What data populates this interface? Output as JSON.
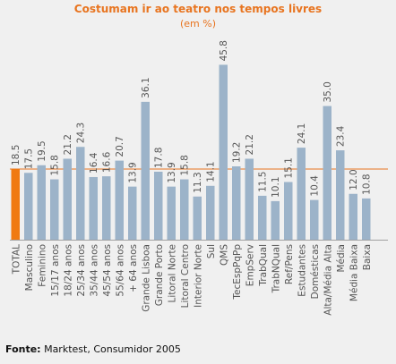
{
  "chart_data": {
    "type": "bar",
    "title": "Costumam ir ao teatro nos tempos livres",
    "subtitle": "(em %)",
    "categories": [
      "TOTAL",
      "Masculino",
      "Feminino",
      "15/17 anos",
      "18/24 anos",
      "25/34 anos",
      "35/44 anos",
      "45/54 anos",
      "55/64 anos",
      "+ 64 anos",
      "Grande Lisboa",
      "Grande Porto",
      "Litoral Norte",
      "Litoral Centro",
      "Interior Norte",
      "Sul",
      "QMS",
      "TecEspPqPp",
      "EmpServ",
      "TrabQual",
      "TrabNQual",
      "Ref/Pens",
      "Estudantes",
      "Domésticas",
      "Alta/Média Alta",
      "Média",
      "Média Baixa",
      "Baixa"
    ],
    "values": [
      18.5,
      17.5,
      19.5,
      15.8,
      21.2,
      24.3,
      16.4,
      16.6,
      20.7,
      13.9,
      36.1,
      17.8,
      13.9,
      15.8,
      11.3,
      14.1,
      45.8,
      19.2,
      21.2,
      11.5,
      10.1,
      15.1,
      24.1,
      10.4,
      35.0,
      23.4,
      12.0,
      10.8
    ],
    "value_labels": [
      "18.5",
      "17.5",
      "19.5",
      "15.8",
      "21.2",
      "24.3",
      "16.4",
      "16.6",
      "20.7",
      "13.9",
      "36.1",
      "17.8",
      "13.9",
      "15.8",
      "11.3",
      "14.1",
      "45.8",
      "19.2",
      "21.2",
      "11.5",
      "10.1",
      "15.1",
      "24.1",
      "10.4",
      "35.0",
      "23.4",
      "12.0",
      "10.8"
    ],
    "highlight_index": 0,
    "reference_value": 18.5,
    "ylim": [
      0,
      50
    ],
    "grid": false,
    "colors": {
      "bar": "#9cb3c9",
      "highlight": "#f07a12",
      "reference_line": "#e8741f",
      "axis": "#a0a0a0",
      "text": "#555555"
    }
  },
  "source": {
    "label": "Fonte:",
    "text": "Marktest, Consumidor 2005"
  }
}
